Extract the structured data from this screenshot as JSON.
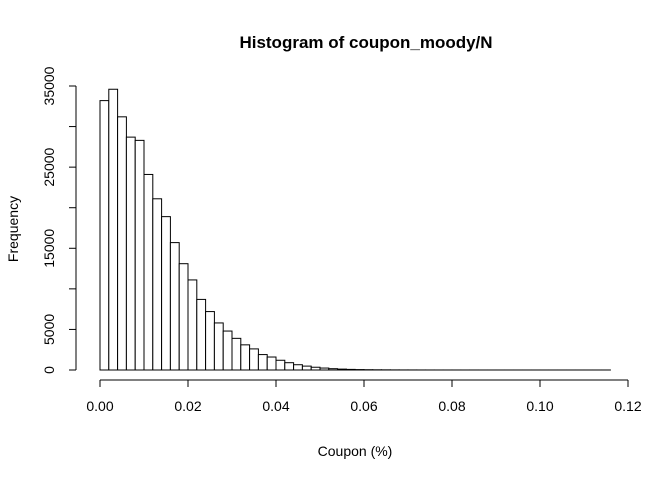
{
  "chart_data": {
    "type": "bar",
    "title": "Histogram of coupon_moody/N",
    "xlabel": "Coupon (%)",
    "ylabel": "Frequency",
    "bin_width": 0.002,
    "x_start": 0.0,
    "x_ticks": [
      "0.00",
      "0.02",
      "0.04",
      "0.06",
      "0.08",
      "0.10",
      "0.12"
    ],
    "x_tick_values": [
      0,
      0.02,
      0.04,
      0.06,
      0.08,
      0.1,
      0.12
    ],
    "y_ticks": [
      "0",
      "5000",
      "15000",
      "25000",
      "35000"
    ],
    "y_tick_values": [
      0,
      5000,
      15000,
      25000,
      35000
    ],
    "y_minor_tick_values": [
      0,
      5000,
      10000,
      15000,
      20000,
      25000,
      30000,
      35000
    ],
    "xlim": [
      0,
      0.12
    ],
    "ylim": [
      0,
      35000
    ],
    "grid": false,
    "values": [
      33200,
      34600,
      31200,
      28700,
      28300,
      24100,
      21100,
      18900,
      15700,
      13100,
      11100,
      8700,
      7200,
      5800,
      4800,
      3900,
      3100,
      2600,
      1900,
      1600,
      1200,
      900,
      650,
      480,
      340,
      240,
      160,
      110,
      75,
      50,
      35,
      25,
      18,
      12,
      9,
      7,
      5,
      4,
      3,
      3,
      2,
      2,
      2,
      1,
      1,
      1,
      1,
      1,
      1,
      1,
      1,
      1,
      1,
      1,
      1,
      1,
      1,
      1
    ]
  }
}
